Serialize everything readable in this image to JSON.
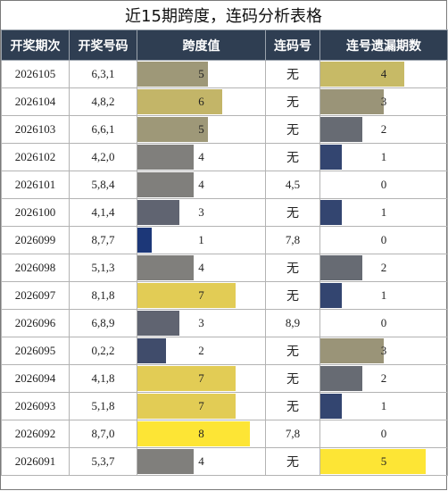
{
  "title": "近15期跨度，连码分析表格",
  "headers": [
    "开奖期次",
    "开奖号码",
    "跨度值",
    "连码号",
    "连号遗漏期数"
  ],
  "max_span": 9,
  "max_miss": 6,
  "rows": [
    {
      "period": "2026105",
      "numbers": "6,3,1",
      "span": "5",
      "lian": "无",
      "miss": "4",
      "span_color": "#9e9878",
      "miss_color": "#c7ba66"
    },
    {
      "period": "2026104",
      "numbers": "4,8,2",
      "span": "6",
      "lian": "无",
      "miss": "3",
      "span_color": "#c3b568",
      "miss_color": "#9a9478"
    },
    {
      "period": "2026103",
      "numbers": "6,6,1",
      "span": "5",
      "lian": "无",
      "miss": "2",
      "span_color": "#9e9878",
      "miss_color": "#676b73"
    },
    {
      "period": "2026102",
      "numbers": "4,2,0",
      "span": "4",
      "lian": "无",
      "miss": "1",
      "span_color": "#807f7c",
      "miss_color": "#334570"
    },
    {
      "period": "2026101",
      "numbers": "5,8,4",
      "span": "4",
      "lian": "4,5",
      "miss": "0",
      "span_color": "#807f7c",
      "miss_color": "#ffffff"
    },
    {
      "period": "2026100",
      "numbers": "4,1,4",
      "span": "3",
      "lian": "无",
      "miss": "1",
      "span_color": "#606471",
      "miss_color": "#334570"
    },
    {
      "period": "2026099",
      "numbers": "8,7,7",
      "span": "1",
      "lian": "7,8",
      "miss": "0",
      "span_color": "#1c3778",
      "miss_color": "#ffffff"
    },
    {
      "period": "2026098",
      "numbers": "5,1,3",
      "span": "4",
      "lian": "无",
      "miss": "2",
      "span_color": "#807f7c",
      "miss_color": "#676b73"
    },
    {
      "period": "2026097",
      "numbers": "8,1,8",
      "span": "7",
      "lian": "无",
      "miss": "1",
      "span_color": "#e2cc55",
      "miss_color": "#334570"
    },
    {
      "period": "2026096",
      "numbers": "6,8,9",
      "span": "3",
      "lian": "8,9",
      "miss": "0",
      "span_color": "#606471",
      "miss_color": "#ffffff"
    },
    {
      "period": "2026095",
      "numbers": "0,2,2",
      "span": "2",
      "lian": "无",
      "miss": "3",
      "span_color": "#404c6b",
      "miss_color": "#9a9478"
    },
    {
      "period": "2026094",
      "numbers": "4,1,8",
      "span": "7",
      "lian": "无",
      "miss": "2",
      "span_color": "#e2cc55",
      "miss_color": "#676b73"
    },
    {
      "period": "2026093",
      "numbers": "5,1,8",
      "span": "7",
      "lian": "无",
      "miss": "1",
      "span_color": "#e2cc55",
      "miss_color": "#334570"
    },
    {
      "period": "2026092",
      "numbers": "8,7,0",
      "span": "8",
      "lian": "7,8",
      "miss": "0",
      "span_color": "#fde535",
      "miss_color": "#ffffff"
    },
    {
      "period": "2026091",
      "numbers": "5,3,7",
      "span": "4",
      "lian": "无",
      "miss": "5",
      "span_color": "#807f7c",
      "miss_color": "#fde535"
    }
  ]
}
